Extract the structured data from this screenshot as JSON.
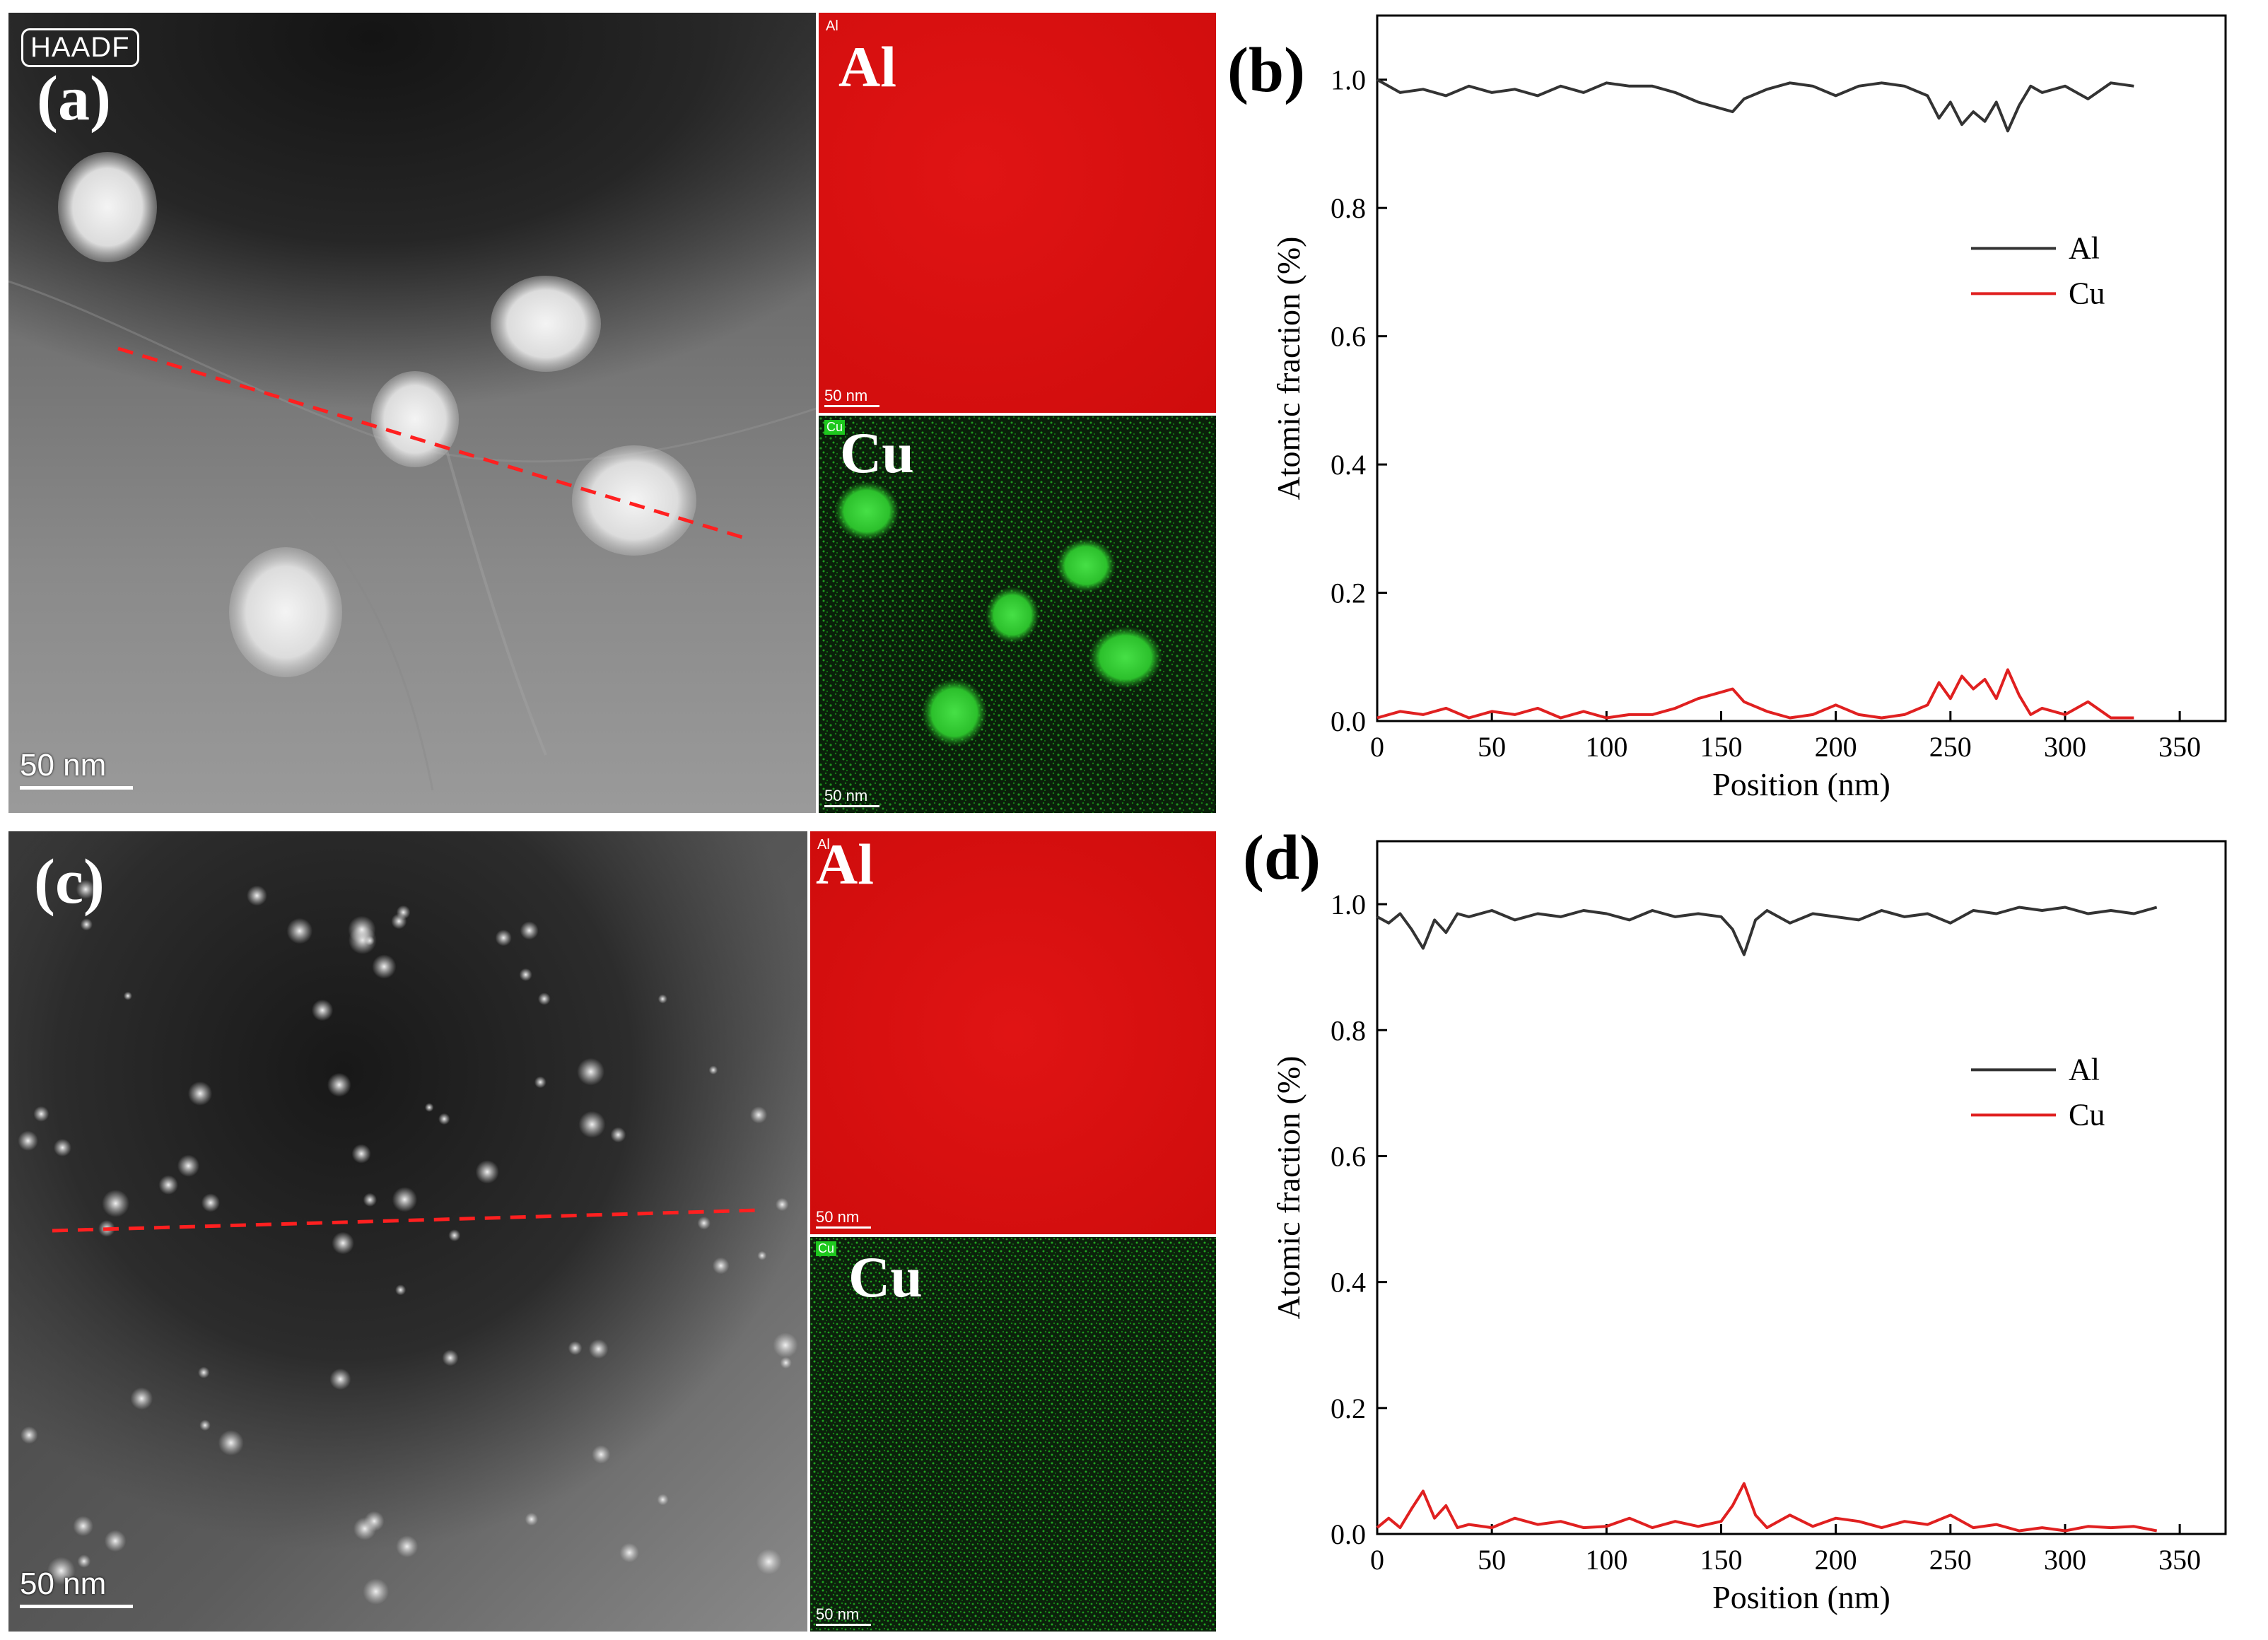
{
  "figure": {
    "panels": {
      "a": {
        "label": "(a)",
        "detector": "HAADF",
        "scale_bar": "50 nm",
        "map_al": {
          "tag": "Al",
          "label": "Al",
          "scale_bar": "50 nm"
        },
        "map_cu": {
          "tag": "Cu",
          "label": "Cu",
          "scale_bar": "50 nm"
        }
      },
      "c": {
        "label": "(c)",
        "scale_bar": "50 nm",
        "map_al": {
          "tag": "Al",
          "label": "Al",
          "scale_bar": "50 nm"
        },
        "map_cu": {
          "tag": "Cu",
          "label": "Cu",
          "scale_bar": "50 nm"
        }
      },
      "b": {
        "label": "(b)"
      },
      "d": {
        "label": "(d)"
      }
    },
    "colors": {
      "al_line": "#333333",
      "cu_line": "#e02020",
      "scan_line": "#ff2020",
      "al_map": "#d90f0f",
      "cu_map_dot": "#1fb21f"
    }
  },
  "chart_data": [
    {
      "panel": "b",
      "type": "line",
      "xlabel": "Position (nm)",
      "ylabel": "Atomic fraction (%)",
      "xlim": [
        0,
        370
      ],
      "ylim": [
        0,
        1.1
      ],
      "xticks": [
        0,
        50,
        100,
        150,
        200,
        250,
        300,
        350
      ],
      "yticks": [
        0.0,
        0.2,
        0.4,
        0.6,
        0.8,
        1.0
      ],
      "xtick_labels": [
        "0",
        "50",
        "100",
        "150",
        "200",
        "250",
        "300",
        "350"
      ],
      "ytick_labels": [
        "0.0",
        "0.2",
        "0.4",
        "0.6",
        "0.8",
        "1.0"
      ],
      "legend_position": "center-right",
      "series": [
        {
          "name": "Al",
          "color": "#333333",
          "x": [
            0,
            10,
            20,
            30,
            40,
            50,
            60,
            70,
            80,
            90,
            100,
            110,
            120,
            130,
            140,
            150,
            155,
            160,
            170,
            180,
            190,
            200,
            210,
            220,
            230,
            240,
            245,
            250,
            255,
            260,
            265,
            270,
            275,
            280,
            285,
            290,
            300,
            310,
            320,
            330
          ],
          "y": [
            1.0,
            0.98,
            0.985,
            0.975,
            0.99,
            0.98,
            0.985,
            0.975,
            0.99,
            0.98,
            0.995,
            0.99,
            0.99,
            0.98,
            0.965,
            0.955,
            0.95,
            0.97,
            0.985,
            0.995,
            0.99,
            0.975,
            0.99,
            0.995,
            0.99,
            0.975,
            0.94,
            0.965,
            0.93,
            0.95,
            0.935,
            0.965,
            0.92,
            0.96,
            0.99,
            0.98,
            0.99,
            0.97,
            0.995,
            0.99
          ]
        },
        {
          "name": "Cu",
          "color": "#e02020",
          "x": [
            0,
            10,
            20,
            30,
            40,
            50,
            60,
            70,
            80,
            90,
            100,
            110,
            120,
            130,
            140,
            150,
            155,
            160,
            170,
            180,
            190,
            200,
            210,
            220,
            230,
            240,
            245,
            250,
            255,
            260,
            265,
            270,
            275,
            280,
            285,
            290,
            300,
            310,
            320,
            330
          ],
          "y": [
            0.005,
            0.015,
            0.01,
            0.02,
            0.005,
            0.015,
            0.01,
            0.02,
            0.005,
            0.015,
            0.005,
            0.01,
            0.01,
            0.02,
            0.035,
            0.045,
            0.05,
            0.03,
            0.015,
            0.005,
            0.01,
            0.025,
            0.01,
            0.005,
            0.01,
            0.025,
            0.06,
            0.035,
            0.07,
            0.05,
            0.065,
            0.035,
            0.08,
            0.04,
            0.01,
            0.02,
            0.01,
            0.03,
            0.005,
            0.005
          ]
        }
      ]
    },
    {
      "panel": "d",
      "type": "line",
      "xlabel": "Position (nm)",
      "ylabel": "Atomic fraction (%)",
      "xlim": [
        0,
        370
      ],
      "ylim": [
        0,
        1.1
      ],
      "xticks": [
        0,
        50,
        100,
        150,
        200,
        250,
        300,
        350
      ],
      "yticks": [
        0.0,
        0.2,
        0.4,
        0.6,
        0.8,
        1.0
      ],
      "xtick_labels": [
        "0",
        "50",
        "100",
        "150",
        "200",
        "250",
        "300",
        "350"
      ],
      "ytick_labels": [
        "0.0",
        "0.2",
        "0.4",
        "0.6",
        "0.8",
        "1.0"
      ],
      "legend_position": "center-right",
      "series": [
        {
          "name": "Al",
          "color": "#333333",
          "x": [
            0,
            5,
            10,
            15,
            20,
            25,
            30,
            35,
            40,
            50,
            60,
            70,
            80,
            90,
            100,
            110,
            120,
            130,
            140,
            150,
            155,
            160,
            165,
            170,
            180,
            190,
            200,
            210,
            220,
            230,
            240,
            250,
            260,
            270,
            280,
            290,
            300,
            310,
            320,
            330,
            340
          ],
          "y": [
            0.98,
            0.97,
            0.985,
            0.96,
            0.93,
            0.975,
            0.955,
            0.985,
            0.98,
            0.99,
            0.975,
            0.985,
            0.98,
            0.99,
            0.985,
            0.975,
            0.99,
            0.98,
            0.985,
            0.98,
            0.96,
            0.92,
            0.975,
            0.99,
            0.97,
            0.985,
            0.98,
            0.975,
            0.99,
            0.98,
            0.985,
            0.97,
            0.99,
            0.985,
            0.995,
            0.99,
            0.995,
            0.985,
            0.99,
            0.985,
            0.995
          ]
        },
        {
          "name": "Cu",
          "color": "#e02020",
          "x": [
            0,
            5,
            10,
            15,
            20,
            25,
            30,
            35,
            40,
            50,
            60,
            70,
            80,
            90,
            100,
            110,
            120,
            130,
            140,
            150,
            155,
            160,
            165,
            170,
            180,
            190,
            200,
            210,
            220,
            230,
            240,
            250,
            260,
            270,
            280,
            290,
            300,
            310,
            320,
            330,
            340
          ],
          "y": [
            0.01,
            0.025,
            0.01,
            0.04,
            0.068,
            0.025,
            0.045,
            0.01,
            0.015,
            0.01,
            0.025,
            0.015,
            0.02,
            0.01,
            0.012,
            0.025,
            0.01,
            0.02,
            0.012,
            0.02,
            0.045,
            0.08,
            0.03,
            0.01,
            0.03,
            0.012,
            0.025,
            0.02,
            0.01,
            0.02,
            0.015,
            0.03,
            0.01,
            0.015,
            0.005,
            0.01,
            0.005,
            0.012,
            0.01,
            0.012,
            0.005
          ]
        }
      ]
    }
  ]
}
